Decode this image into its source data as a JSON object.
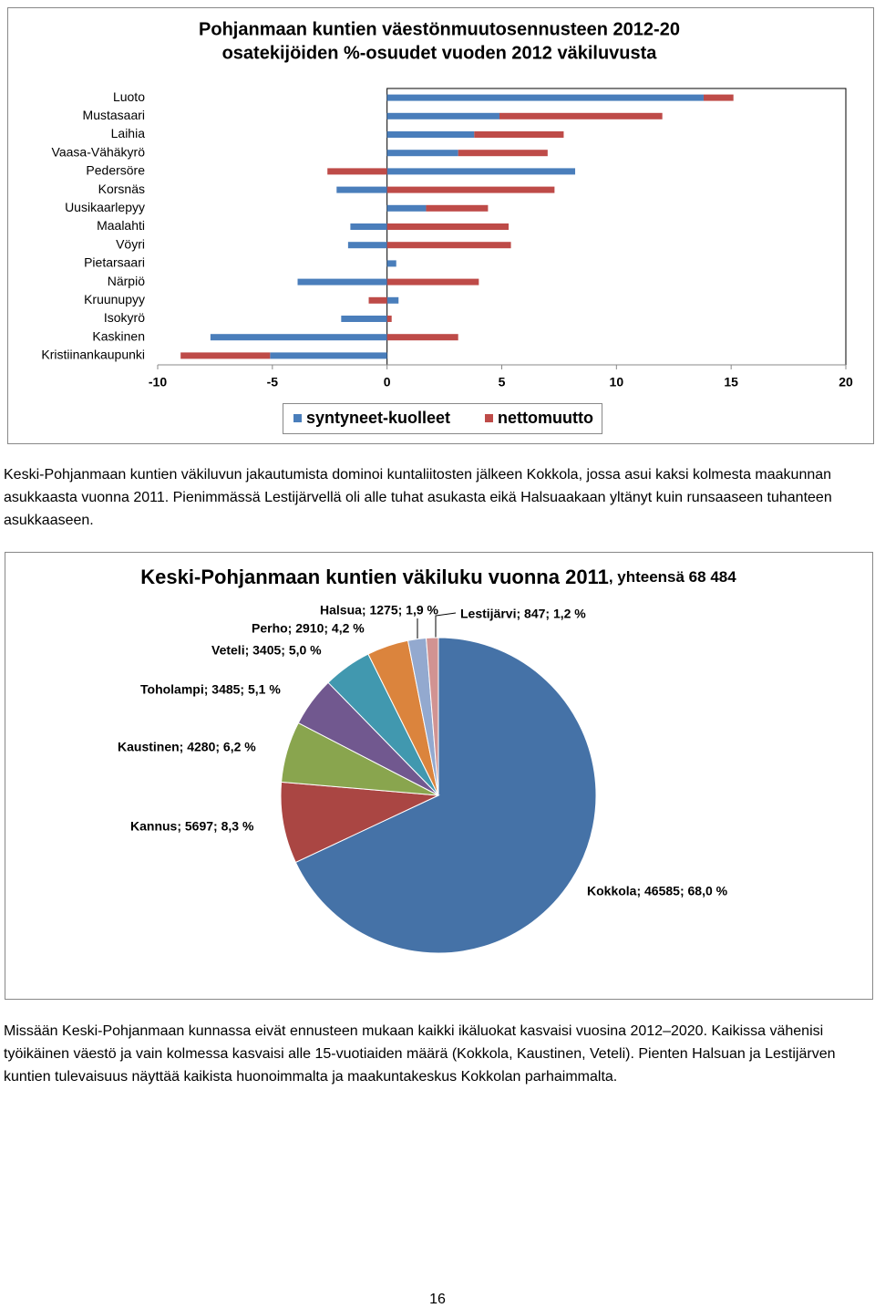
{
  "chart_data": [
    {
      "type": "bar",
      "orientation": "horizontal",
      "stacked": true,
      "title": [
        "Pohjanmaan kuntien väestönmuutosennusteen 2012-20",
        "osatekijöiden %-osuudet vuoden 2012 väkiluvusta"
      ],
      "categories": [
        "Luoto",
        "Mustasaari",
        "Laihia",
        "Vaasa-Vähäkyrö",
        "Pedersöre",
        "Korsnäs",
        "Uusikaarlepyy",
        "Maalahti",
        "Vöyri",
        "Pietarsaari",
        "Närpiö",
        "Kruunupyy",
        "Isokyrö",
        "Kaskinen",
        "Kristiinankaupunki"
      ],
      "series": [
        {
          "name": "syntyneet-kuolleet",
          "color": "#4a7ebb",
          "values": [
            13.8,
            4.9,
            3.8,
            3.1,
            8.2,
            -2.2,
            1.7,
            -1.6,
            -1.7,
            0.4,
            -3.9,
            0.5,
            -2.0,
            -7.7,
            -5.1
          ]
        },
        {
          "name": "nettomuutto",
          "color": "#be4b48",
          "values": [
            1.3,
            7.1,
            3.9,
            3.9,
            -2.6,
            7.3,
            2.7,
            5.3,
            5.4,
            0,
            4.0,
            -0.8,
            0.2,
            3.1,
            -3.9
          ]
        }
      ],
      "xlim": [
        -10,
        20
      ],
      "xticks": [
        -10,
        -5,
        0,
        5,
        10,
        15,
        20
      ],
      "legend": "bottom"
    },
    {
      "type": "pie",
      "title": "Keski-Pohjanmaan kuntien väkiluku vuonna 2011",
      "subtitle": ", yhteensä 68 484",
      "values": [
        46585,
        5697,
        4280,
        3485,
        3405,
        2910,
        1275,
        847
      ],
      "value_labels": [
        "Kokkola; 46585; 68,0 %",
        "Kannus; 5697; 8,3 %",
        "Kaustinen; 4280; 6,2 %",
        "Toholampi; 3485; 5,1 %",
        "Veteli; 3405; 5,0 %",
        "Perho; 2910; 4,2 %",
        "Halsua; 1275; 1,9 %",
        "Lestijärvi; 847; 1,2 %"
      ],
      "colors": [
        "#4572a7",
        "#aa4643",
        "#89a54e",
        "#71588f",
        "#4198af",
        "#db843d",
        "#93a9cf",
        "#d19392"
      ]
    }
  ],
  "paragraphs": [
    "Keski-Pohjanmaan kuntien väkiluvun jakautumista dominoi kuntaliitosten jälkeen Kokkola, jossa asui kaksi kolmesta maakunnan asukkaasta vuonna 2011. Pienimmässä Lestijärvellä oli alle tuhat asukasta eikä Halsuaakaan yltänyt kuin runsaaseen tuhanteen asukkaaseen.",
    "Missään Keski-Pohjanmaan kunnassa eivät ennusteen mukaan kaikki ikäluokat kasvaisi vuosina 2012–2020. Kaikissa vähenisi työikäinen väestö ja vain kolmessa kasvaisi alle 15-vuotiaiden määrä (Kokkola, Kaustinen, Veteli). Pienten Halsuan ja Lestijärven kuntien tulevaisuus näyttää kaikista huonoimmalta ja maakuntakeskus Kokkolan parhaimmalta."
  ],
  "page_number": 16
}
